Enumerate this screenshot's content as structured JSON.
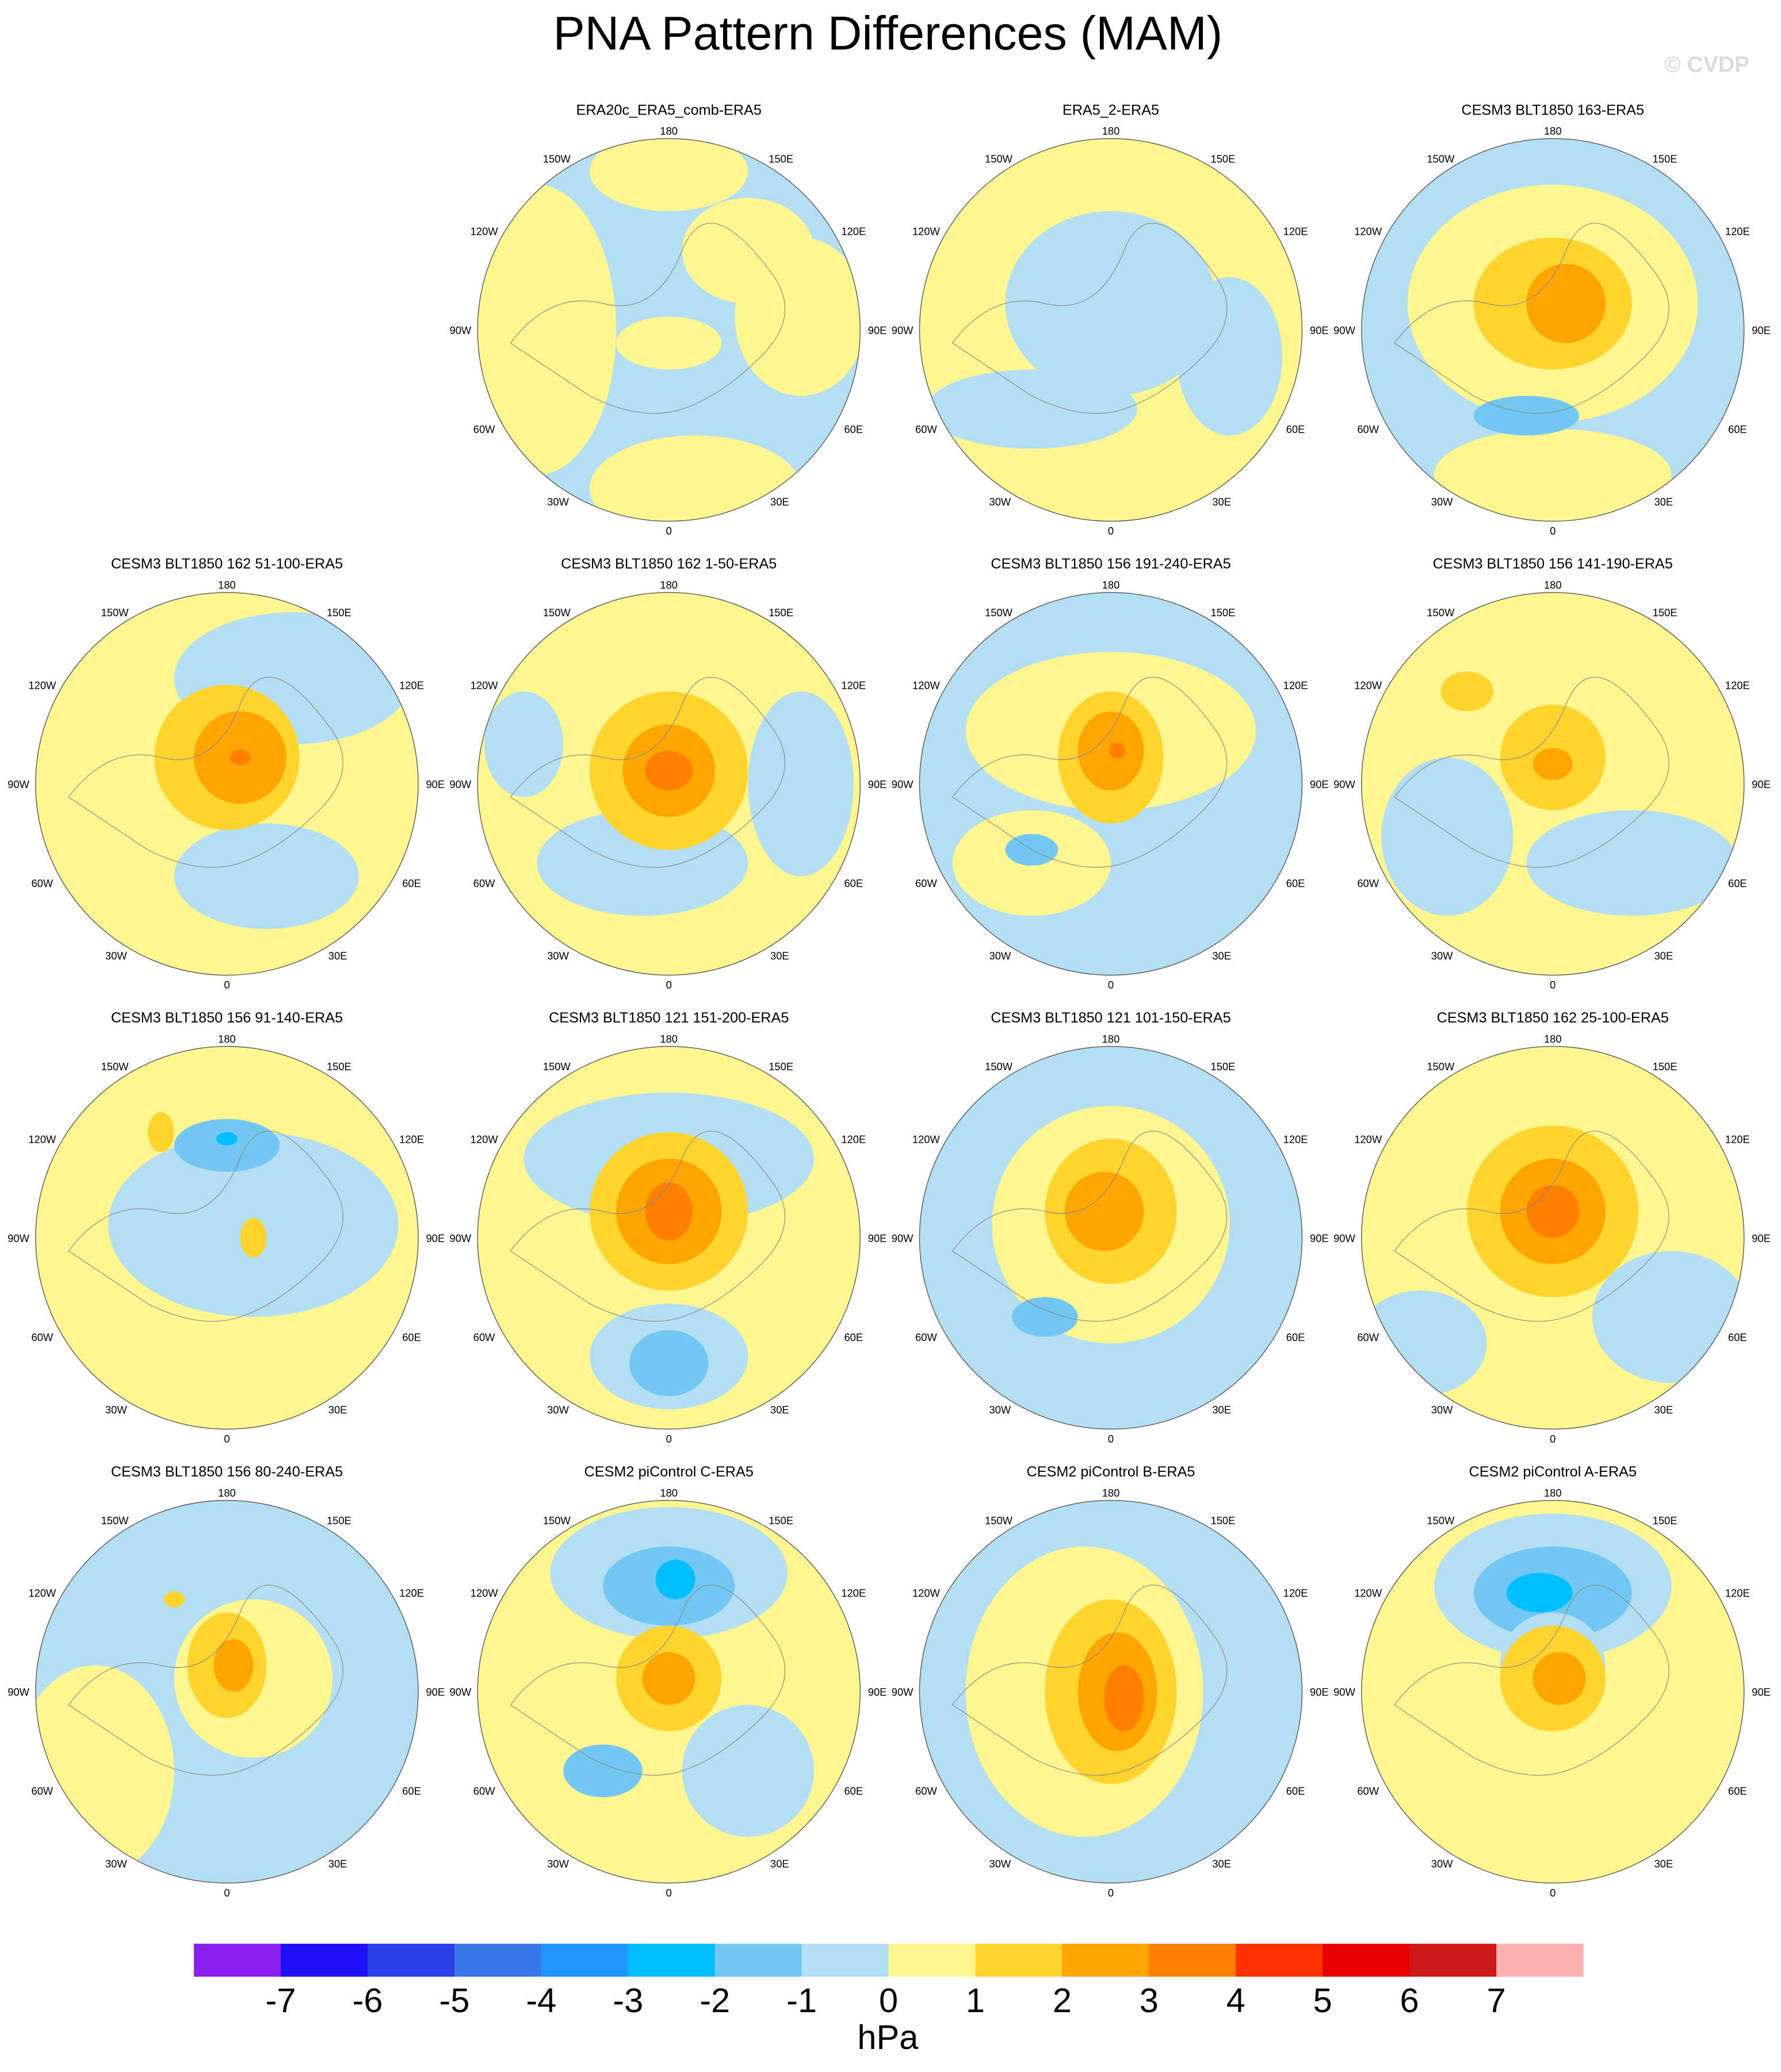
{
  "title": "PNA Pattern Differences (MAM)",
  "watermark": "© CVDP",
  "lon_labels": [
    "180",
    "150E",
    "120E",
    "90E",
    "60E",
    "30E",
    "0",
    "30W",
    "60W",
    "90W",
    "120W",
    "150W"
  ],
  "panels": [
    {
      "title": "ERA20c_ERA5_comb-ERA5"
    },
    {
      "title": "ERA5_2-ERA5"
    },
    {
      "title": "CESM3 BLT1850 163-ERA5"
    },
    {
      "title": "CESM3 BLT1850 162 51-100-ERA5"
    },
    {
      "title": "CESM3 BLT1850 162 1-50-ERA5"
    },
    {
      "title": "CESM3 BLT1850 156 191-240-ERA5"
    },
    {
      "title": "CESM3 BLT1850 156 141-190-ERA5"
    },
    {
      "title": "CESM3 BLT1850 156 91-140-ERA5"
    },
    {
      "title": "CESM3 BLT1850 121 151-200-ERA5"
    },
    {
      "title": "CESM3 BLT1850 121 101-150-ERA5"
    },
    {
      "title": "CESM3 BLT1850 162 25-100-ERA5"
    },
    {
      "title": "CESM3 BLT1850 156 80-240-ERA5"
    },
    {
      "title": "CESM2 piControl C-ERA5"
    },
    {
      "title": "CESM2 piControl B-ERA5"
    },
    {
      "title": "CESM2 piControl A-ERA5"
    }
  ],
  "colorbar": {
    "levels": [
      -7,
      -6,
      -5,
      -4,
      -3,
      -2,
      -1,
      0,
      1,
      2,
      3,
      4,
      5,
      6,
      7
    ],
    "colors": [
      "#8a1ff0",
      "#2010f5",
      "#2a3fe8",
      "#3a78e8",
      "#1e96ff",
      "#00bfff",
      "#72c8f2",
      "#b4dff2",
      "#fff68f",
      "#ffd42e",
      "#ffa500",
      "#ff7f00",
      "#ff3300",
      "#e60000",
      "#cc1a1a",
      "#ffb0b0"
    ],
    "label": "hPa"
  }
}
